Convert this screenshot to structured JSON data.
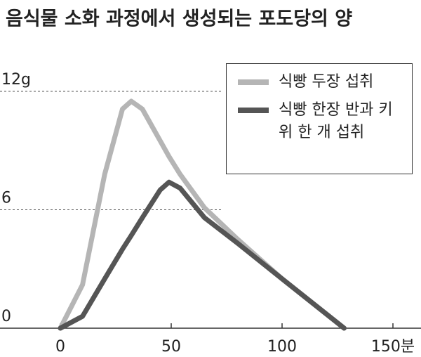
{
  "chart_data": {
    "type": "line",
    "title": "음식물 소화 과정에서 생성되는 포도당의 양",
    "x": [
      0,
      10,
      20,
      28,
      32,
      37,
      45,
      49,
      54,
      65,
      80,
      100,
      128
    ],
    "series": [
      {
        "name": "식빵 두장 섭취",
        "color": "#b5b5b5",
        "values": [
          0,
          2.2,
          7.8,
          11.1,
          11.5,
          11.1,
          9.5,
          8.7,
          7.8,
          6.1,
          4.5,
          2.5,
          0
        ]
      },
      {
        "name": "식빵 한장 반과 키위 한 개 섭취",
        "color": "#555555",
        "values": [
          0,
          0.6,
          2.5,
          4.0,
          4.7,
          5.6,
          7.0,
          7.4,
          7.1,
          5.6,
          4.3,
          2.5,
          0
        ]
      }
    ],
    "xlim": [
      0,
      150
    ],
    "xticks": [
      0,
      50,
      100,
      {
        "value": 150,
        "label": "150분"
      }
    ],
    "ylim": [
      0,
      12
    ],
    "yticks": [
      0,
      6,
      {
        "value": 12,
        "label": "12g"
      }
    ],
    "grid": true,
    "legend": "top-right"
  }
}
